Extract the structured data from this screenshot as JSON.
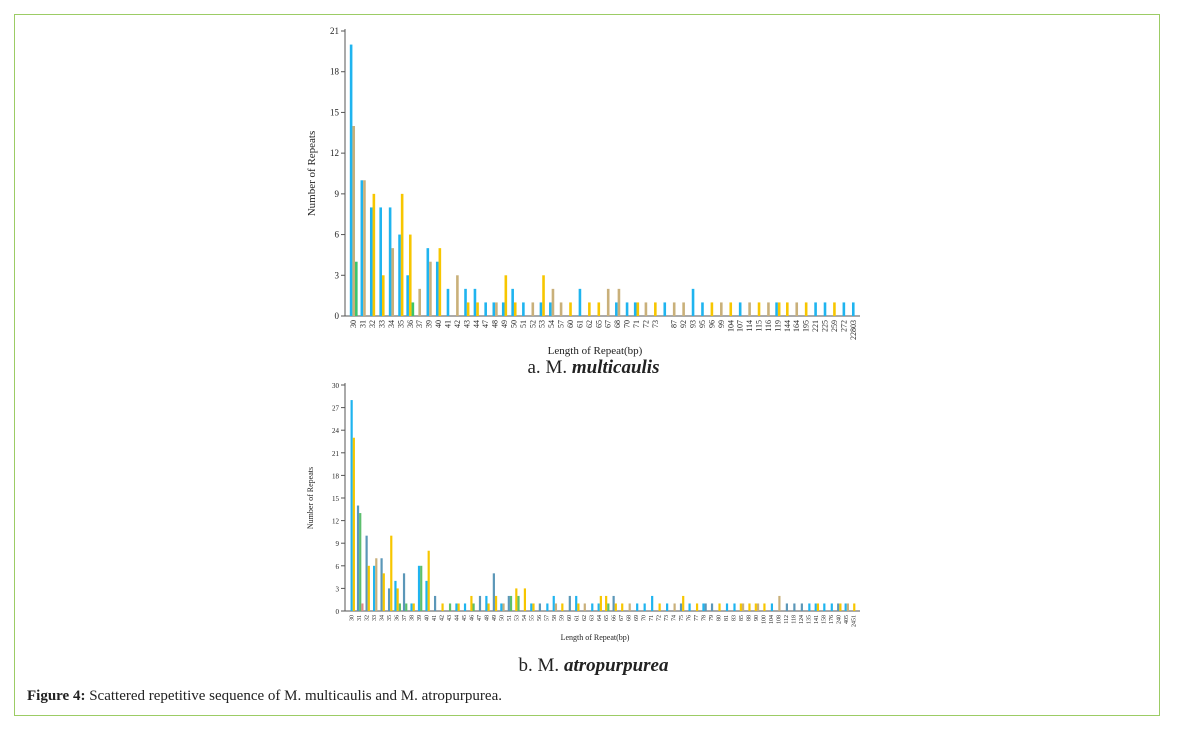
{
  "figure": {
    "label": "Figure 4:",
    "text": " Scattered repetitive sequence of M. multicaulis and M. atropurpurea."
  },
  "chart_data": [
    {
      "type": "bar",
      "panel": "a.",
      "species": "M.",
      "species_italic": "multicaulis",
      "xlabel": "Length of Repeat(bp)",
      "ylabel": "Number of Repeats",
      "ylim": [
        0,
        21
      ],
      "yticks": [
        0,
        3,
        6,
        9,
        12,
        15,
        18,
        21
      ],
      "series": [
        {
          "name": "blue",
          "color": "#1fb4ef"
        },
        {
          "name": "tan",
          "color": "#c9b07a"
        },
        {
          "name": "yellow",
          "color": "#f7c600"
        },
        {
          "name": "green",
          "color": "#3cc46a"
        }
      ],
      "categories": [
        "30",
        "31",
        "32",
        "33",
        "34",
        "35",
        "36",
        "37",
        "39",
        "40",
        "41",
        "42",
        "43",
        "44",
        "47",
        "48",
        "49",
        "50",
        "51",
        "52",
        "53",
        "54",
        "57",
        "60",
        "61",
        "62",
        "65",
        "67",
        "68",
        "70",
        "71",
        "72",
        "73",
        "",
        "87",
        "92",
        "93",
        "95",
        "96",
        "99",
        "104",
        "107",
        "114",
        "115",
        "116",
        "119",
        "144",
        "164",
        "195",
        "221",
        "225",
        "259",
        "272",
        "22803"
      ],
      "values": [
        [
          20,
          14,
          0,
          4
        ],
        [
          10,
          10,
          0,
          0
        ],
        [
          8,
          0,
          9,
          0
        ],
        [
          8,
          0,
          3,
          0
        ],
        [
          8,
          5,
          0,
          0
        ],
        [
          6,
          0,
          9,
          0
        ],
        [
          3,
          0,
          6,
          1
        ],
        [
          0,
          2,
          0,
          0
        ],
        [
          5,
          4,
          0,
          0
        ],
        [
          4,
          0,
          5,
          0
        ],
        [
          2,
          0,
          0,
          0
        ],
        [
          0,
          3,
          0,
          0
        ],
        [
          2,
          0,
          1,
          0
        ],
        [
          2,
          0,
          1,
          0
        ],
        [
          1,
          0,
          0,
          0
        ],
        [
          1,
          1,
          0,
          0
        ],
        [
          1,
          0,
          3,
          0
        ],
        [
          2,
          0,
          1,
          0
        ],
        [
          1,
          0,
          0,
          0
        ],
        [
          0,
          1,
          0,
          0
        ],
        [
          1,
          0,
          3,
          0
        ],
        [
          1,
          2,
          0,
          0
        ],
        [
          0,
          1,
          0,
          0
        ],
        [
          0,
          0,
          1,
          0
        ],
        [
          2,
          0,
          0,
          0
        ],
        [
          0,
          0,
          1,
          0
        ],
        [
          0,
          0,
          1,
          0
        ],
        [
          0,
          2,
          0,
          0
        ],
        [
          1,
          2,
          0,
          0
        ],
        [
          1,
          0,
          0,
          0
        ],
        [
          1,
          0,
          1,
          0
        ],
        [
          0,
          1,
          0,
          0
        ],
        [
          0,
          0,
          1,
          0
        ],
        [
          1,
          0,
          0,
          0
        ],
        [
          0,
          1,
          0,
          0
        ],
        [
          0,
          1,
          0,
          0
        ],
        [
          2,
          0,
          0,
          0
        ],
        [
          1,
          0,
          0,
          0
        ],
        [
          0,
          0,
          1,
          0
        ],
        [
          0,
          1,
          0,
          0
        ],
        [
          0,
          0,
          1,
          0
        ],
        [
          1,
          0,
          0,
          0
        ],
        [
          0,
          1,
          0,
          0
        ],
        [
          0,
          0,
          1,
          0
        ],
        [
          0,
          1,
          0,
          0
        ],
        [
          1,
          0,
          1,
          0
        ],
        [
          0,
          0,
          1,
          0
        ],
        [
          0,
          1,
          0,
          0
        ],
        [
          0,
          0,
          1,
          0
        ],
        [
          1,
          0,
          0,
          0
        ],
        [
          1,
          0,
          0,
          0
        ],
        [
          0,
          0,
          1,
          0
        ],
        [
          1,
          0,
          0,
          0
        ],
        [
          1,
          0,
          0,
          0
        ]
      ]
    },
    {
      "type": "bar",
      "panel": "b.",
      "species": "M.",
      "species_italic": "atropurpurea",
      "xlabel": "Length of Repeat(bp)",
      "ylabel": "Number of Repeats",
      "ylim": [
        0,
        30
      ],
      "yticks": [
        0,
        3,
        6,
        9,
        12,
        15,
        18,
        21,
        24,
        27,
        30
      ],
      "series": [
        {
          "name": "blue",
          "color": "#1fb4ef"
        },
        {
          "name": "steel-blue",
          "color": "#5b97b8"
        },
        {
          "name": "yellow",
          "color": "#f7c600"
        },
        {
          "name": "tan",
          "color": "#c9b07a"
        },
        {
          "name": "green",
          "color": "#5cbf6e"
        },
        {
          "name": "pink",
          "color": "#e08a8a"
        }
      ],
      "categories": [
        "30",
        "31",
        "32",
        "33",
        "34",
        "35",
        "36",
        "37",
        "38",
        "39",
        "40",
        "41",
        "42",
        "43",
        "44",
        "45",
        "46",
        "47",
        "48",
        "49",
        "50",
        "51",
        "53",
        "54",
        "55",
        "56",
        "57",
        "58",
        "59",
        "60",
        "61",
        "62",
        "63",
        "64",
        "65",
        "66",
        "67",
        "68",
        "69",
        "70",
        "71",
        "72",
        "73",
        "74",
        "75",
        "76",
        "77",
        "78",
        "79",
        "80",
        "81",
        "83",
        "85",
        "88",
        "90",
        "100",
        "104",
        "108",
        "112",
        "118",
        "124",
        "135",
        "141",
        "158",
        "176",
        "240",
        "405",
        "2451"
      ],
      "values": [
        [
          28,
          0,
          23,
          0,
          0,
          0
        ],
        [
          0,
          14,
          0,
          0,
          13,
          1
        ],
        [
          0,
          10,
          6,
          0,
          0,
          0
        ],
        [
          6,
          0,
          0,
          7,
          0,
          0
        ],
        [
          0,
          7,
          5,
          0,
          0,
          0
        ],
        [
          0,
          3,
          10,
          0,
          0,
          0
        ],
        [
          4,
          0,
          3,
          0,
          1,
          0
        ],
        [
          0,
          5,
          0,
          0,
          1,
          0
        ],
        [
          1,
          0,
          1,
          0,
          0,
          0
        ],
        [
          6,
          0,
          0,
          0,
          6,
          0
        ],
        [
          4,
          0,
          8,
          0,
          0,
          0
        ],
        [
          0,
          2,
          0,
          0,
          0,
          0
        ],
        [
          0,
          0,
          1,
          0,
          0,
          0
        ],
        [
          0,
          0,
          0,
          0,
          1,
          0
        ],
        [
          1,
          0,
          1,
          0,
          0,
          0
        ],
        [
          1,
          0,
          0,
          0,
          0,
          0
        ],
        [
          0,
          0,
          2,
          0,
          1,
          0
        ],
        [
          0,
          2,
          0,
          0,
          0,
          0
        ],
        [
          2,
          0,
          1,
          0,
          0,
          0
        ],
        [
          0,
          5,
          2,
          0,
          0,
          0
        ],
        [
          1,
          0,
          0,
          1,
          0,
          0
        ],
        [
          0,
          2,
          0,
          0,
          2,
          0
        ],
        [
          0,
          0,
          3,
          0,
          2,
          0
        ],
        [
          0,
          0,
          3,
          0,
          0,
          0
        ],
        [
          1,
          0,
          1,
          0,
          0,
          0
        ],
        [
          0,
          1,
          0,
          0,
          0,
          0
        ],
        [
          1,
          0,
          0,
          0,
          0,
          0
        ],
        [
          2,
          0,
          0,
          1,
          0,
          0
        ],
        [
          0,
          0,
          1,
          0,
          0,
          0
        ],
        [
          0,
          2,
          0,
          0,
          0,
          0
        ],
        [
          2,
          0,
          1,
          0,
          0,
          0
        ],
        [
          0,
          0,
          0,
          1,
          0,
          0
        ],
        [
          1,
          0,
          0,
          0,
          0,
          0
        ],
        [
          1,
          0,
          2,
          0,
          0,
          0
        ],
        [
          0,
          0,
          2,
          0,
          1,
          0
        ],
        [
          0,
          2,
          1,
          0,
          0,
          0
        ],
        [
          0,
          0,
          1,
          0,
          0,
          0
        ],
        [
          0,
          0,
          0,
          1,
          0,
          0
        ],
        [
          1,
          0,
          0,
          0,
          0,
          0
        ],
        [
          1,
          0,
          0,
          0,
          0,
          0
        ],
        [
          2,
          0,
          0,
          0,
          0,
          0
        ],
        [
          0,
          0,
          1,
          0,
          0,
          0
        ],
        [
          1,
          0,
          0,
          0,
          0,
          0
        ],
        [
          0,
          0,
          0,
          1,
          0,
          0
        ],
        [
          0,
          1,
          2,
          0,
          0,
          0
        ],
        [
          1,
          0,
          0,
          0,
          0,
          0
        ],
        [
          0,
          0,
          1,
          0,
          0,
          0
        ],
        [
          1,
          1,
          0,
          0,
          0,
          0
        ],
        [
          0,
          1,
          0,
          0,
          0,
          0
        ],
        [
          0,
          0,
          1,
          0,
          0,
          0
        ],
        [
          1,
          0,
          0,
          0,
          0,
          0
        ],
        [
          1,
          0,
          0,
          0,
          0,
          0
        ],
        [
          0,
          0,
          1,
          1,
          0,
          0
        ],
        [
          0,
          0,
          1,
          0,
          0,
          0
        ],
        [
          0,
          0,
          1,
          1,
          0,
          0
        ],
        [
          0,
          0,
          1,
          0,
          0,
          0
        ],
        [
          1,
          0,
          0,
          0,
          0,
          0
        ],
        [
          0,
          0,
          0,
          2,
          0,
          0
        ],
        [
          0,
          1,
          0,
          0,
          0,
          0
        ],
        [
          0,
          1,
          0,
          0,
          0,
          0
        ],
        [
          0,
          1,
          0,
          0,
          0,
          0
        ],
        [
          1,
          0,
          0,
          0,
          0,
          0
        ],
        [
          1,
          0,
          1,
          0,
          0,
          0
        ],
        [
          1,
          0,
          0,
          0,
          0,
          0
        ],
        [
          1,
          0,
          0,
          0,
          0,
          0
        ],
        [
          0,
          1,
          1,
          0,
          0,
          0
        ],
        [
          1,
          0,
          0,
          1,
          0,
          0
        ],
        [
          0,
          0,
          1,
          0,
          0,
          0
        ]
      ]
    }
  ]
}
